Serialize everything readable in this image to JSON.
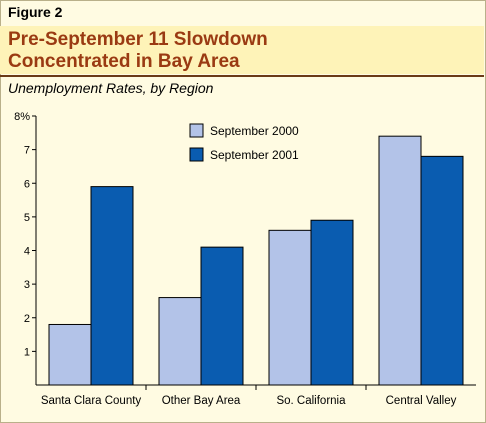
{
  "figure_label": "Figure 2",
  "title_line1": "Pre-September 11 Slowdown",
  "title_line2": "Concentrated in Bay Area",
  "colors": {
    "series_2000": "#b3c3e8",
    "series_2001": "#0a5cb0",
    "title": "#9a3a12"
  },
  "chart_data": {
    "type": "bar",
    "title": "Pre-September 11 Slowdown Concentrated in Bay Area",
    "subtitle": "Unemployment Rates, by Region",
    "categories": [
      "Santa Clara County",
      "Other Bay Area",
      "So. California",
      "Central Valley"
    ],
    "series": [
      {
        "name": "September 2000",
        "values": [
          1.8,
          2.6,
          4.6,
          7.4
        ]
      },
      {
        "name": "September 2001",
        "values": [
          5.9,
          4.1,
          4.9,
          6.8
        ]
      }
    ],
    "ylim": [
      0,
      8
    ],
    "yticks": [
      "1",
      "2",
      "3",
      "4",
      "5",
      "6",
      "7",
      "8%"
    ],
    "grid": false,
    "legend_position": "top-center"
  }
}
